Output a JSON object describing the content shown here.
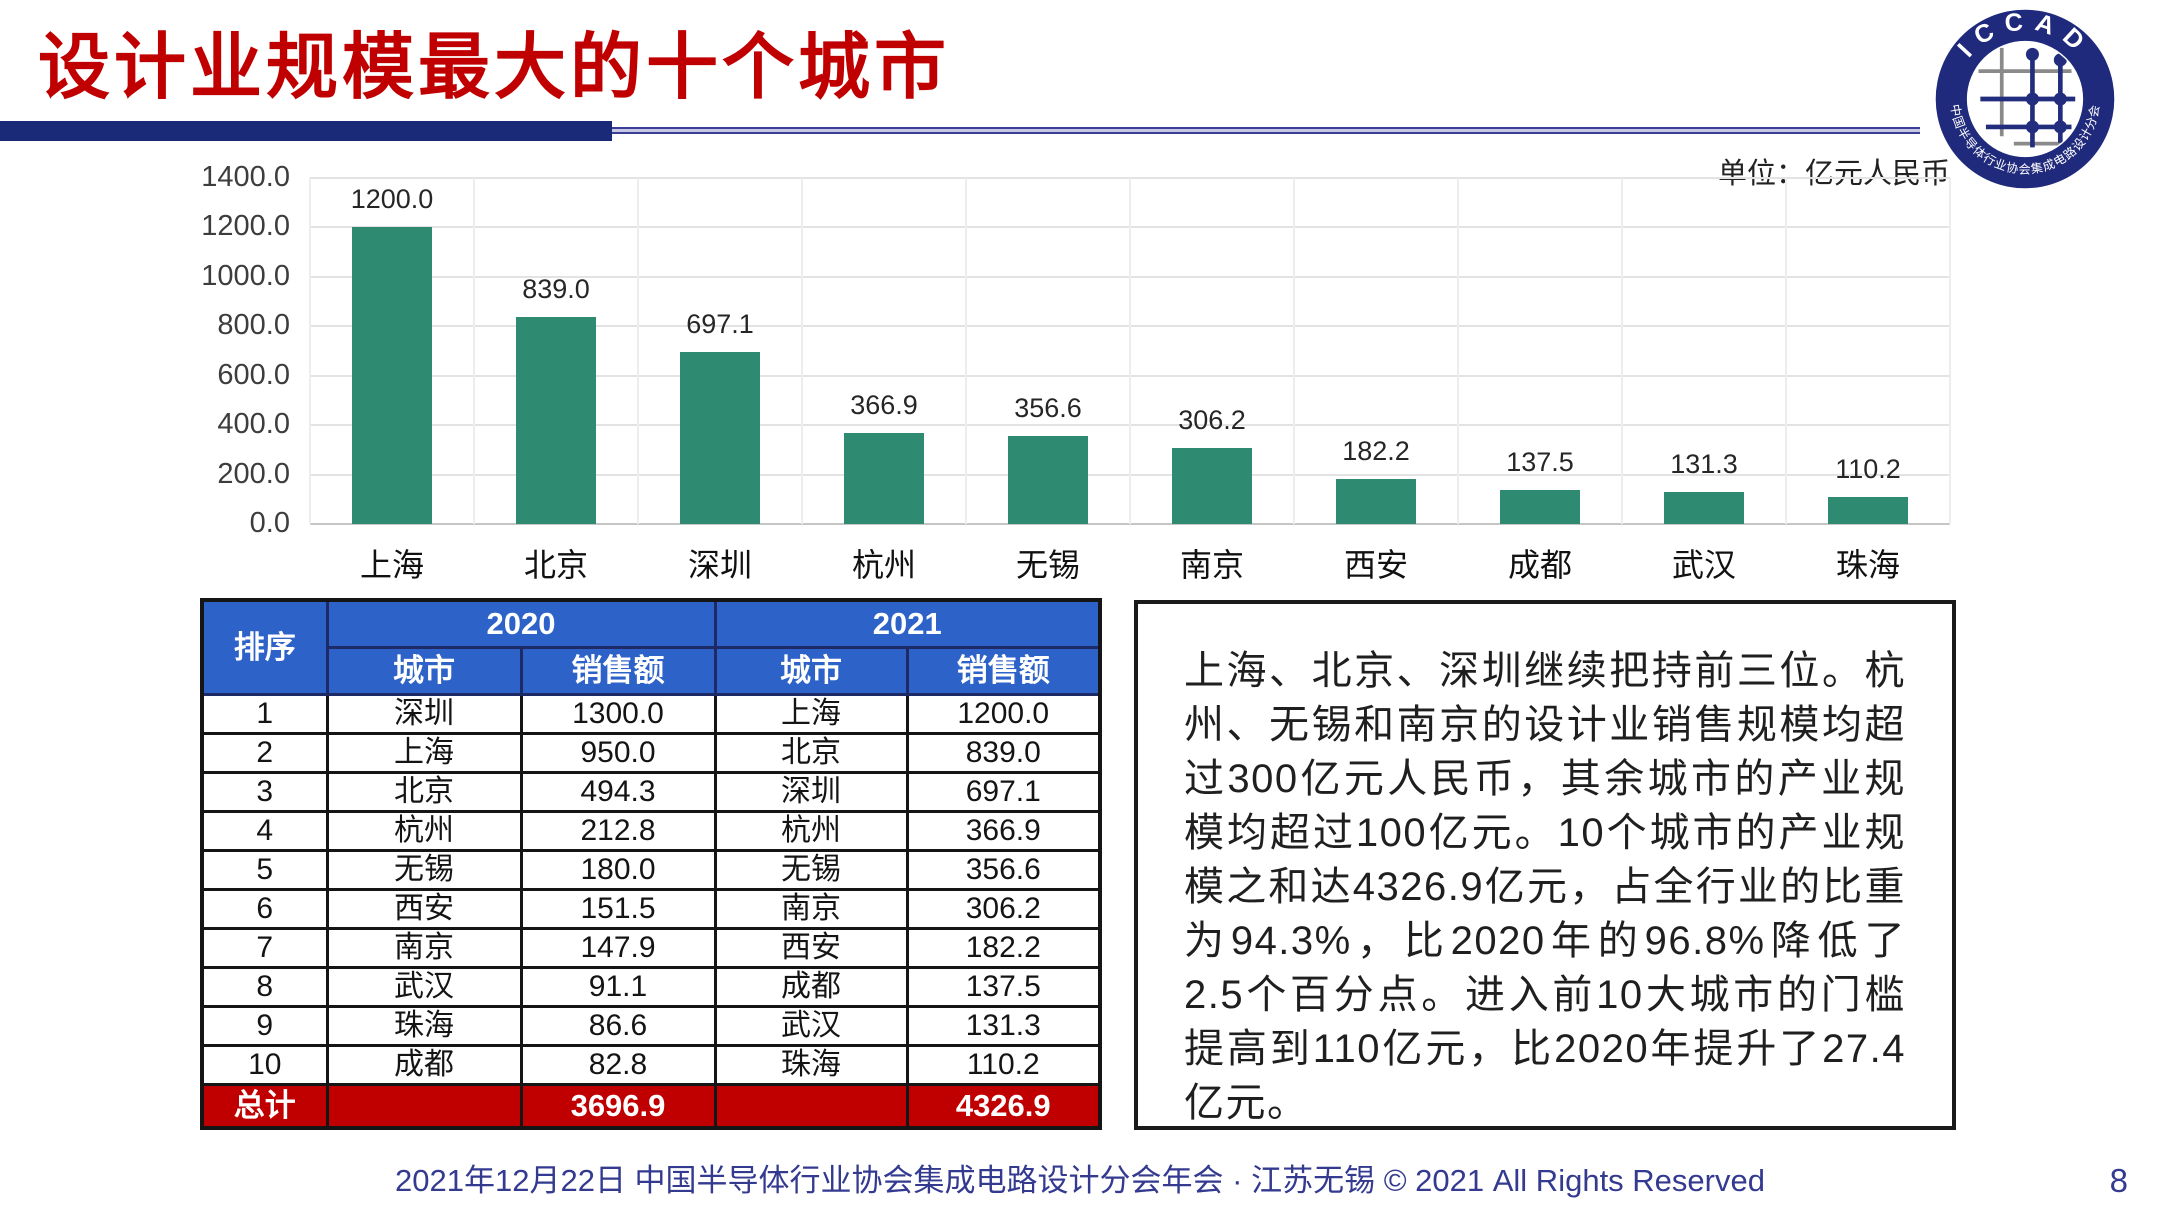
{
  "slide": {
    "title": "设计业规模最大的十个城市",
    "unit_label": "单位：亿元人民币",
    "footer": "2021年12月22日 中国半导体行业协会集成电路设计分会年会 · 江苏无锡 © 2021 All Rights Reserved",
    "page_number": "8"
  },
  "logo": {
    "top_text": "ICCAD",
    "ring_text": "中国半导体行业协会集成电路设计分会"
  },
  "colors": {
    "title_red": "#c00000",
    "divider_navy": "#1b2a78",
    "bar_teal": "#2e8b72",
    "header_blue": "#2d62c8",
    "total_red": "#c00000",
    "footer_navy": "#333a8f"
  },
  "chart_data": {
    "type": "bar",
    "title": "设计业规模最大的十个城市",
    "unit": "亿元人民币",
    "categories": [
      "上海",
      "北京",
      "深圳",
      "杭州",
      "无锡",
      "南京",
      "西安",
      "成都",
      "武汉",
      "珠海"
    ],
    "values": [
      1200.0,
      839.0,
      697.1,
      366.9,
      356.6,
      306.2,
      182.2,
      137.5,
      131.3,
      110.2
    ],
    "labels": [
      "1200.0",
      "839.0",
      "697.1",
      "366.9",
      "356.6",
      "306.2",
      "182.2",
      "137.5",
      "131.3",
      "110.2"
    ],
    "ylim": [
      0,
      1400
    ],
    "y_ticks": [
      "0.0",
      "200.0",
      "400.0",
      "600.0",
      "800.0",
      "1000.0",
      "1200.0",
      "1400.0"
    ],
    "grid": true,
    "legend": "none"
  },
  "table": {
    "rank_header": "排序",
    "year_headers": [
      "2020",
      "2021"
    ],
    "sub_headers": [
      "城市",
      "销售额",
      "城市",
      "销售额"
    ],
    "rows": [
      [
        "1",
        "深圳",
        "1300.0",
        "上海",
        "1200.0"
      ],
      [
        "2",
        "上海",
        "950.0",
        "北京",
        "839.0"
      ],
      [
        "3",
        "北京",
        "494.3",
        "深圳",
        "697.1"
      ],
      [
        "4",
        "杭州",
        "212.8",
        "杭州",
        "366.9"
      ],
      [
        "5",
        "无锡",
        "180.0",
        "无锡",
        "356.6"
      ],
      [
        "6",
        "西安",
        "151.5",
        "南京",
        "306.2"
      ],
      [
        "7",
        "南京",
        "147.9",
        "西安",
        "182.2"
      ],
      [
        "8",
        "武汉",
        "91.1",
        "成都",
        "137.5"
      ],
      [
        "9",
        "珠海",
        "86.6",
        "武汉",
        "131.3"
      ],
      [
        "10",
        "成都",
        "82.8",
        "珠海",
        "110.2"
      ]
    ],
    "total": {
      "label": "总计",
      "sales2020": "3696.9",
      "sales2021": "4326.9"
    }
  },
  "commentary": {
    "text": "上海、北京、深圳继续把持前三位。杭州、无锡和南京的设计业销售规模均超过300亿元人民币，其余城市的产业规模均超过100亿元。10个城市的产业规模之和达4326.9亿元，占全行业的比重为94.3%，比2020年的96.8%降低了2.5个百分点。进入前10大城市的门槛提高到110亿元，比2020年提升了27.4亿元。"
  }
}
